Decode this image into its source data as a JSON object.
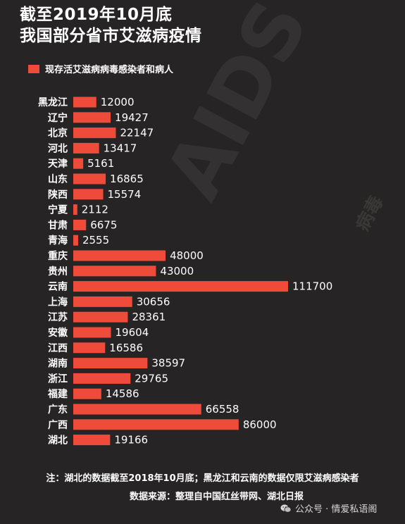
{
  "title_lines": [
    "截至2019年10月底",
    "我国部分省市艾滋病疫情"
  ],
  "watermark": {
    "text_main": "AIDS HIV",
    "text_cn": "病毒"
  },
  "chart_data": {
    "type": "bar",
    "orientation": "horizontal",
    "categories": [
      "黑龙江",
      "辽宁",
      "北京",
      "河北",
      "天津",
      "山东",
      "陕西",
      "宁夏",
      "甘肃",
      "青海",
      "重庆",
      "贵州",
      "云南",
      "上海",
      "江苏",
      "安徽",
      "江西",
      "湖南",
      "浙江",
      "福建",
      "广东",
      "广西",
      "湖北"
    ],
    "series": [
      {
        "name": "现存活艾滋病病毒感染者和病人",
        "color": "#ef4b3a",
        "values": [
          12000,
          19427,
          22147,
          13417,
          5161,
          16865,
          15574,
          2112,
          6675,
          2555,
          48000,
          43000,
          111700,
          30656,
          28361,
          19604,
          16586,
          38597,
          29765,
          14586,
          66558,
          86000,
          19166
        ]
      }
    ],
    "xlim": [
      0,
      111700
    ],
    "grid": false,
    "legend_position": "top-left"
  },
  "notes": {
    "note1": "注：湖北的数据截至2018年10月底；黑龙江和云南的数据仅限艾滋病感染者",
    "note2": "数据来源：整理自中国红丝带网、湖北日报"
  },
  "footer": {
    "icon": "wechat-icon",
    "text": "公众号 · 情爱私语阁"
  }
}
